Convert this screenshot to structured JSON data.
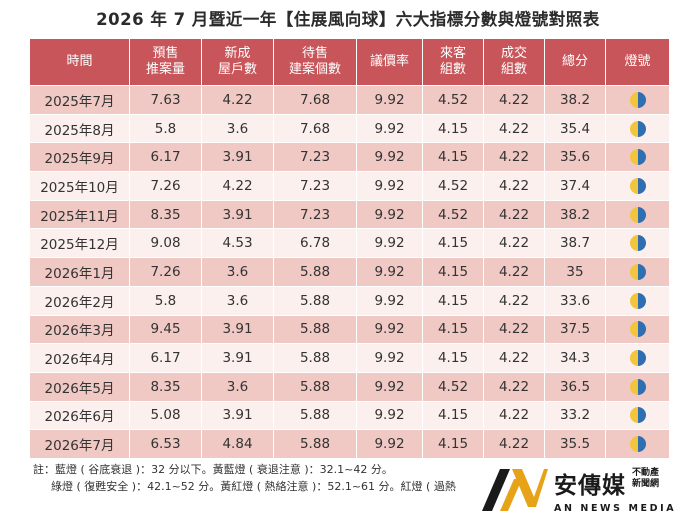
{
  "title": "2026 年 7 月暨近一年【住展風向球】六大指標分數與燈號對照表",
  "headers": {
    "time": "時間",
    "presale_1": "預售",
    "presale_2": "推案量",
    "new_units_1": "新成",
    "new_units_2": "屋戶數",
    "pending_1": "待售",
    "pending_2": "建案個數",
    "bargain": "議價率",
    "visitors_1": "來客",
    "visitors_2": "組數",
    "deals_1": "成交",
    "deals_2": "組數",
    "total": "總分",
    "light": "燈號"
  },
  "rows": [
    {
      "time": "2025年7月",
      "presale": "7.63",
      "new_units": "4.22",
      "pending": "7.68",
      "bargain": "9.92",
      "visitors": "4.52",
      "deals": "4.22",
      "total": "38.2",
      "light_icon": "yellow-blue-light-icon"
    },
    {
      "time": "2025年8月",
      "presale": "5.8",
      "new_units": "3.6",
      "pending": "7.68",
      "bargain": "9.92",
      "visitors": "4.15",
      "deals": "4.22",
      "total": "35.4",
      "light_icon": "yellow-blue-light-icon"
    },
    {
      "time": "2025年9月",
      "presale": "6.17",
      "new_units": "3.91",
      "pending": "7.23",
      "bargain": "9.92",
      "visitors": "4.15",
      "deals": "4.22",
      "total": "35.6",
      "light_icon": "yellow-blue-light-icon"
    },
    {
      "time": "2025年10月",
      "presale": "7.26",
      "new_units": "4.22",
      "pending": "7.23",
      "bargain": "9.92",
      "visitors": "4.52",
      "deals": "4.22",
      "total": "37.4",
      "light_icon": "yellow-blue-light-icon"
    },
    {
      "time": "2025年11月",
      "presale": "8.35",
      "new_units": "3.91",
      "pending": "7.23",
      "bargain": "9.92",
      "visitors": "4.52",
      "deals": "4.22",
      "total": "38.2",
      "light_icon": "yellow-blue-light-icon"
    },
    {
      "time": "2025年12月",
      "presale": "9.08",
      "new_units": "4.53",
      "pending": "6.78",
      "bargain": "9.92",
      "visitors": "4.15",
      "deals": "4.22",
      "total": "38.7",
      "light_icon": "yellow-blue-light-icon"
    },
    {
      "time": "2026年1月",
      "presale": "7.26",
      "new_units": "3.6",
      "pending": "5.88",
      "bargain": "9.92",
      "visitors": "4.15",
      "deals": "4.22",
      "total": "35",
      "light_icon": "yellow-blue-light-icon"
    },
    {
      "time": "2026年2月",
      "presale": "5.8",
      "new_units": "3.6",
      "pending": "5.88",
      "bargain": "9.92",
      "visitors": "4.15",
      "deals": "4.22",
      "total": "33.6",
      "light_icon": "yellow-blue-light-icon"
    },
    {
      "time": "2026年3月",
      "presale": "9.45",
      "new_units": "3.91",
      "pending": "5.88",
      "bargain": "9.92",
      "visitors": "4.15",
      "deals": "4.22",
      "total": "37.5",
      "light_icon": "yellow-blue-light-icon"
    },
    {
      "time": "2026年4月",
      "presale": "6.17",
      "new_units": "3.91",
      "pending": "5.88",
      "bargain": "9.92",
      "visitors": "4.15",
      "deals": "4.22",
      "total": "34.3",
      "light_icon": "yellow-blue-light-icon"
    },
    {
      "time": "2026年5月",
      "presale": "8.35",
      "new_units": "3.6",
      "pending": "5.88",
      "bargain": "9.92",
      "visitors": "4.52",
      "deals": "4.22",
      "total": "36.5",
      "light_icon": "yellow-blue-light-icon"
    },
    {
      "time": "2026年6月",
      "presale": "5.08",
      "new_units": "3.91",
      "pending": "5.88",
      "bargain": "9.92",
      "visitors": "4.15",
      "deals": "4.22",
      "total": "33.2",
      "light_icon": "yellow-blue-light-icon"
    },
    {
      "time": "2026年7月",
      "presale": "6.53",
      "new_units": "4.84",
      "pending": "5.88",
      "bargain": "9.92",
      "visitors": "4.15",
      "deals": "4.22",
      "total": "35.5",
      "light_icon": "yellow-blue-light-icon"
    }
  ],
  "notes": {
    "line1": "註：藍燈 ( 谷底衰退 )：32 分以下。黃藍燈 ( 衰退注意 )：32.1~42 分。",
    "line2": "綠燈 ( 復甦安全 )：42.1~52 分。黃紅燈 ( 熱絡注意 )：52.1~61 分。紅燈 ( 過熱"
  },
  "logo": {
    "name": "安傳媒",
    "sub_1": "不動產",
    "sub_2": "新聞網",
    "english": "AN NEWS MEDIA"
  },
  "colors": {
    "header_bg": "#c8555a",
    "row_odd": "#f0c9c4",
    "row_even": "#fbf0ed",
    "light_yellow": "#f2c53d",
    "light_blue": "#2f6eb0",
    "logo_gold": "#e6a317"
  }
}
